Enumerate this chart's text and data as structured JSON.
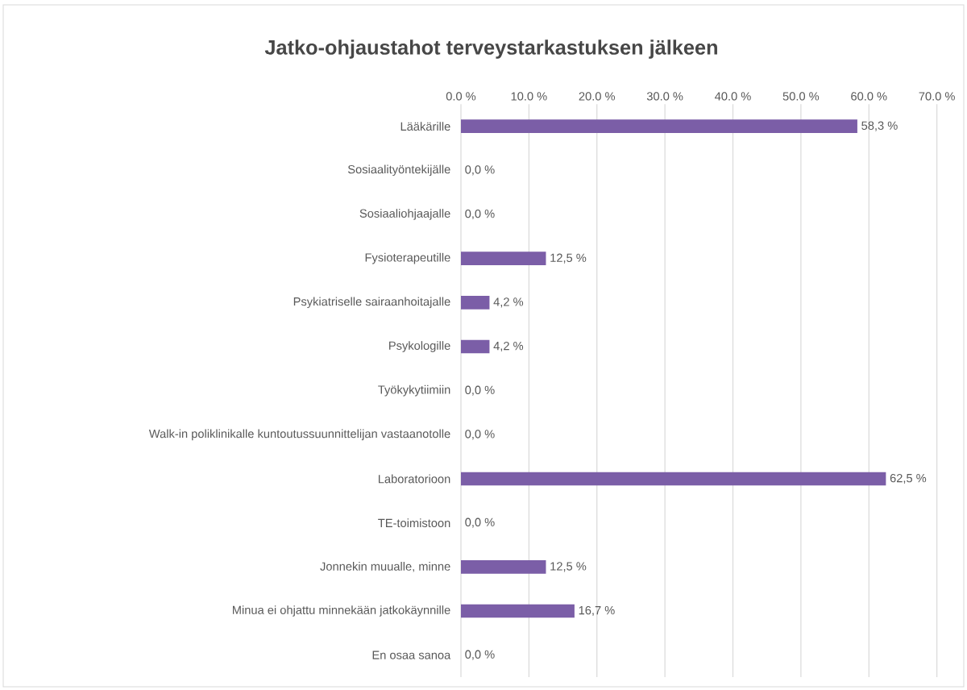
{
  "chart_data": {
    "type": "bar",
    "orientation": "horizontal",
    "title": "Jatko-ohjaustahot terveystarkastuksen jälkeen",
    "categories": [
      "Lääkärille",
      "Sosiaalityöntekijälle",
      "Sosiaaliohjaajalle",
      "Fysioterapeutille",
      "Psykiatriselle sairaanhoitajalle",
      "Psykologille",
      "Työkykytiimiin",
      "Walk-in poliklinikalle kuntoutussuunnittelijan vastaanotolle",
      "Laboratorioon",
      "TE-toimistoon",
      "Jonnekin muualle, minne",
      "Minua ei ohjattu minnekään jatkokäynnille",
      "En osaa sanoa"
    ],
    "values": [
      58.3,
      0.0,
      0.0,
      12.5,
      4.2,
      4.2,
      0.0,
      0.0,
      62.5,
      0.0,
      12.5,
      16.7,
      0.0
    ],
    "value_labels": [
      "58,3 %",
      "0,0 %",
      "0,0 %",
      "12,5 %",
      "4,2 %",
      "4,2 %",
      "0,0 %",
      "0,0 %",
      "62,5 %",
      "0,0 %",
      "12,5 %",
      "16,7 %",
      "0,0 %"
    ],
    "color": "#7b5ea7",
    "xlim": [
      0,
      70
    ],
    "xticks": [
      {
        "value": 0,
        "label": "0.0 %"
      },
      {
        "value": 10,
        "label": "10.0 %"
      },
      {
        "value": 20,
        "label": "20.0 %"
      },
      {
        "value": 30,
        "label": "30.0 %"
      },
      {
        "value": 40,
        "label": "40.0 %"
      },
      {
        "value": 50,
        "label": "50.0 %"
      },
      {
        "value": 60,
        "label": "60.0 %"
      },
      {
        "value": 70,
        "label": "70.0 %"
      }
    ],
    "grid": "x"
  }
}
